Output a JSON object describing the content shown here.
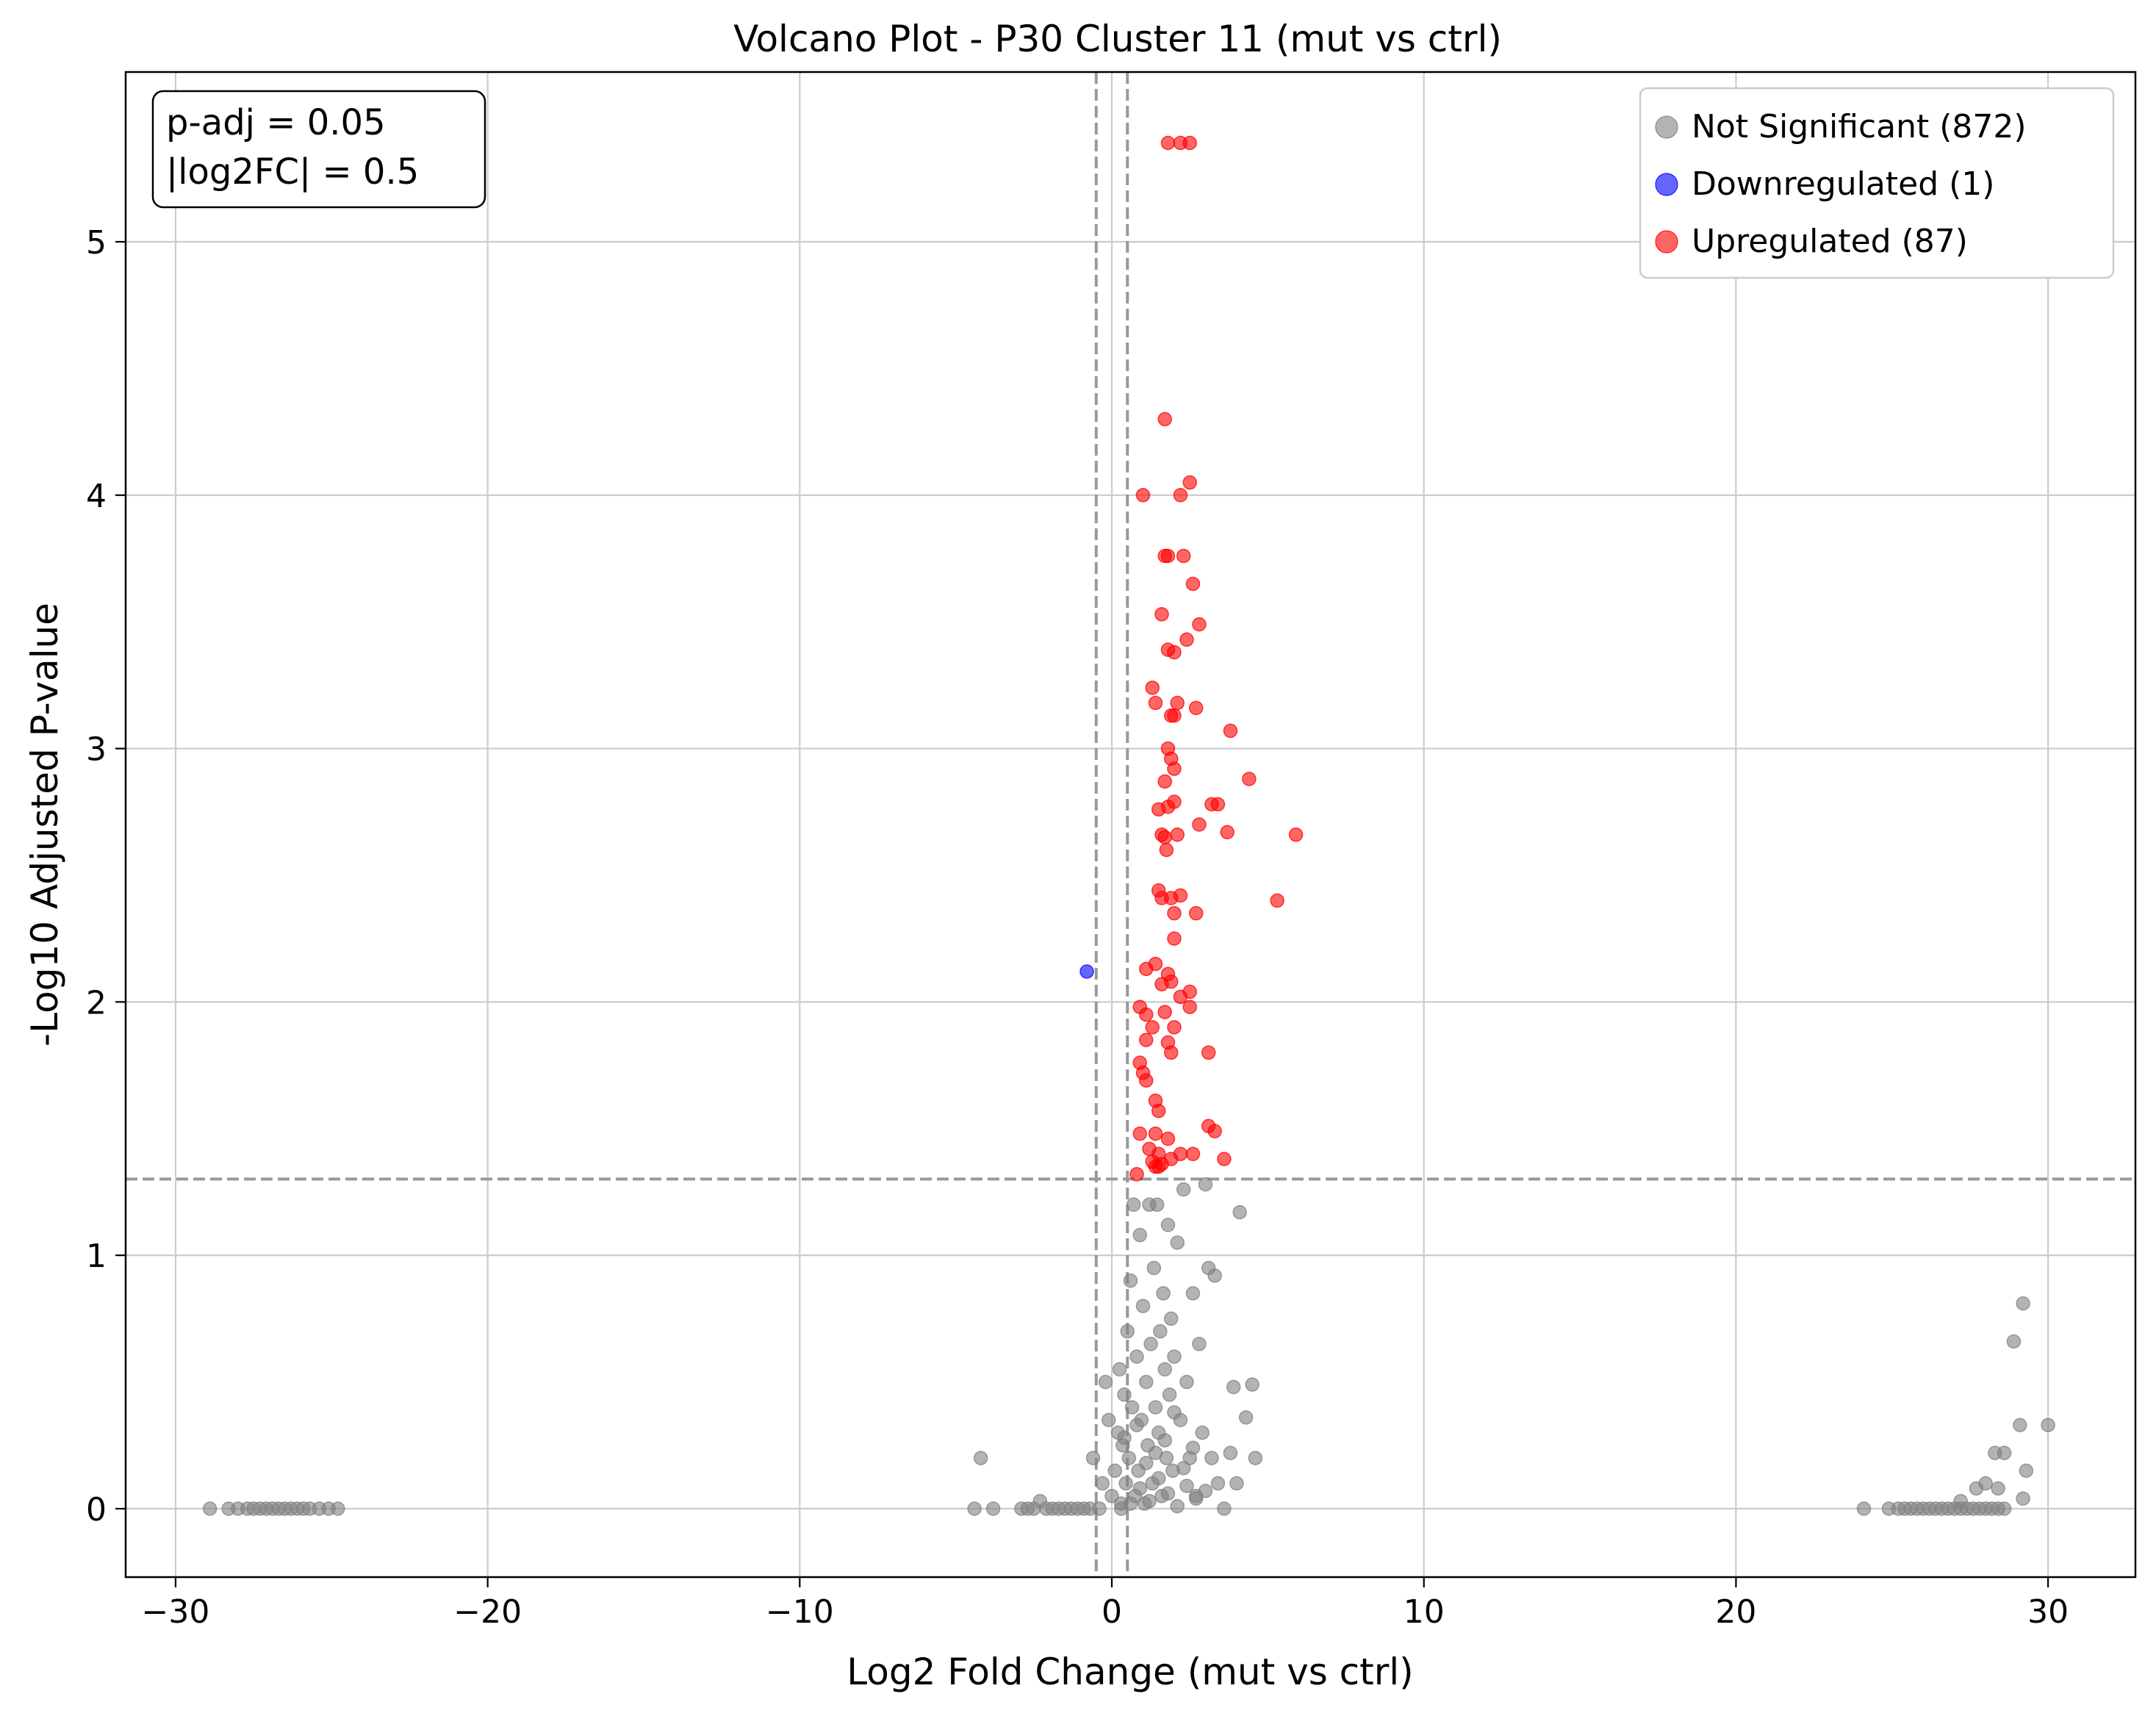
{
  "chart_data": {
    "type": "scatter",
    "title": "Volcano Plot - P30 Cluster 11 (mut vs ctrl)",
    "xlabel": "Log2 Fold Change (mut vs ctrl)",
    "ylabel": "-Log10 Adjusted P-value",
    "xlim": [
      -31.6,
      32.8
    ],
    "ylim": [
      -0.27,
      5.67
    ],
    "xticks": [
      -30,
      -20,
      -10,
      0,
      10,
      20,
      30
    ],
    "yticks": [
      0,
      1,
      2,
      3,
      4,
      5
    ],
    "grid": true,
    "legend_position": "top-right",
    "annotation": [
      "p-adj = 0.05",
      "|log2FC| = 0.5"
    ],
    "thresholds": {
      "padj_line_y": 1.301,
      "log2fc_lines_x": [
        -0.5,
        0.5
      ]
    },
    "series": [
      {
        "name": "Not Significant (872)",
        "color": "#808080",
        "points": [
          [
            -28.9,
            0
          ],
          [
            -28.3,
            0
          ],
          [
            -28.0,
            0
          ],
          [
            -27.7,
            0
          ],
          [
            -27.5,
            0
          ],
          [
            -27.3,
            0
          ],
          [
            -27.1,
            0
          ],
          [
            -26.9,
            0
          ],
          [
            -26.7,
            0
          ],
          [
            -26.5,
            0
          ],
          [
            -26.3,
            0
          ],
          [
            -26.1,
            0
          ],
          [
            -25.9,
            0
          ],
          [
            -25.7,
            0
          ],
          [
            -25.4,
            0
          ],
          [
            -25.1,
            0
          ],
          [
            -24.8,
            0
          ],
          [
            -4.4,
            0
          ],
          [
            -4.2,
            0.2
          ],
          [
            -3.8,
            0
          ],
          [
            -2.9,
            0
          ],
          [
            -2.7,
            0
          ],
          [
            -2.5,
            0
          ],
          [
            -2.3,
            0.03
          ],
          [
            -2.1,
            0
          ],
          [
            -1.9,
            0
          ],
          [
            -1.7,
            0
          ],
          [
            -1.5,
            0
          ],
          [
            -1.3,
            0
          ],
          [
            -1.1,
            0
          ],
          [
            -0.9,
            0
          ],
          [
            -0.7,
            0
          ],
          [
            -0.6,
            0.2
          ],
          [
            -0.4,
            0
          ],
          [
            -0.3,
            0.1
          ],
          [
            -0.2,
            0.5
          ],
          [
            -0.1,
            0.35
          ],
          [
            0.0,
            0.05
          ],
          [
            0.1,
            0.15
          ],
          [
            0.2,
            0.3
          ],
          [
            0.25,
            0.55
          ],
          [
            0.3,
            0.02
          ],
          [
            0.35,
            0.25
          ],
          [
            0.4,
            0.45
          ],
          [
            0.45,
            0.1
          ],
          [
            0.5,
            0.7
          ],
          [
            0.55,
            0.2
          ],
          [
            0.6,
            0.9
          ],
          [
            0.65,
            0.4
          ],
          [
            0.7,
            1.2
          ],
          [
            0.75,
            0.05
          ],
          [
            0.8,
            0.6
          ],
          [
            0.85,
            0.15
          ],
          [
            0.9,
            1.08
          ],
          [
            0.95,
            0.35
          ],
          [
            1.0,
            0.8
          ],
          [
            1.05,
            0.02
          ],
          [
            1.1,
            0.5
          ],
          [
            1.15,
            0.25
          ],
          [
            1.2,
            1.2
          ],
          [
            1.25,
            0.65
          ],
          [
            1.3,
            0.1
          ],
          [
            1.35,
            0.95
          ],
          [
            1.4,
            0.4
          ],
          [
            1.45,
            1.2
          ],
          [
            1.5,
            0.3
          ],
          [
            1.55,
            0.7
          ],
          [
            1.6,
            0.05
          ],
          [
            1.65,
            0.85
          ],
          [
            1.7,
            0.55
          ],
          [
            1.75,
            0.2
          ],
          [
            1.8,
            1.12
          ],
          [
            1.85,
            0.45
          ],
          [
            1.9,
            0.75
          ],
          [
            1.95,
            0.15
          ],
          [
            2.0,
            0.6
          ],
          [
            2.1,
            1.05
          ],
          [
            2.2,
            0.35
          ],
          [
            2.3,
            1.26
          ],
          [
            2.4,
            0.5
          ],
          [
            2.5,
            0.2
          ],
          [
            2.6,
            0.85
          ],
          [
            2.7,
            0.05
          ],
          [
            2.8,
            0.65
          ],
          [
            2.9,
            0.3
          ],
          [
            3.0,
            1.28
          ],
          [
            3.1,
            0.95
          ],
          [
            3.2,
            0.2
          ],
          [
            3.3,
            0.92
          ],
          [
            3.4,
            0.1
          ],
          [
            3.6,
            0
          ],
          [
            3.8,
            0.22
          ],
          [
            3.9,
            0.48
          ],
          [
            4.0,
            0.1
          ],
          [
            4.1,
            1.17
          ],
          [
            4.3,
            0.36
          ],
          [
            4.5,
            0.49
          ],
          [
            4.6,
            0.2
          ],
          [
            0.3,
            0
          ],
          [
            0.6,
            0.02
          ],
          [
            0.9,
            0.08
          ],
          [
            1.2,
            0.03
          ],
          [
            1.5,
            0.12
          ],
          [
            1.8,
            0.06
          ],
          [
            2.1,
            0.01
          ],
          [
            2.4,
            0.09
          ],
          [
            2.7,
            0.04
          ],
          [
            3.0,
            0.07
          ],
          [
            0.4,
            0.28
          ],
          [
            0.8,
            0.33
          ],
          [
            1.1,
            0.18
          ],
          [
            1.4,
            0.22
          ],
          [
            1.7,
            0.27
          ],
          [
            2.0,
            0.38
          ],
          [
            2.3,
            0.16
          ],
          [
            2.6,
            0.24
          ],
          [
            24.1,
            0
          ],
          [
            24.9,
            0
          ],
          [
            25.2,
            0
          ],
          [
            25.4,
            0
          ],
          [
            25.6,
            0
          ],
          [
            25.8,
            0
          ],
          [
            26.0,
            0
          ],
          [
            26.2,
            0
          ],
          [
            26.4,
            0
          ],
          [
            26.6,
            0
          ],
          [
            26.8,
            0
          ],
          [
            27.0,
            0
          ],
          [
            27.2,
            0
          ],
          [
            27.4,
            0
          ],
          [
            27.6,
            0
          ],
          [
            27.8,
            0
          ],
          [
            28.0,
            0
          ],
          [
            28.2,
            0
          ],
          [
            28.4,
            0
          ],
          [
            28.6,
            0
          ],
          [
            27.2,
            0.03
          ],
          [
            27.7,
            0.08
          ],
          [
            28.0,
            0.1
          ],
          [
            28.3,
            0.22
          ],
          [
            28.6,
            0.22
          ],
          [
            28.9,
            0.66
          ],
          [
            29.1,
            0.33
          ],
          [
            29.2,
            0.81
          ],
          [
            29.3,
            0.15
          ],
          [
            29.2,
            0.04
          ],
          [
            28.4,
            0.08
          ],
          [
            30.0,
            0.33
          ]
        ]
      },
      {
        "name": "Downregulated (1)",
        "color": "#0000ff",
        "points": [
          [
            -0.8,
            2.12
          ]
        ]
      },
      {
        "name": "Upregulated (87)",
        "color": "#ff0000",
        "points": [
          [
            1.8,
            5.39
          ],
          [
            2.2,
            5.39
          ],
          [
            2.5,
            5.39
          ],
          [
            1.7,
            4.3
          ],
          [
            2.5,
            4.05
          ],
          [
            1.0,
            4.0
          ],
          [
            2.2,
            4.0
          ],
          [
            1.8,
            3.76
          ],
          [
            1.7,
            3.76
          ],
          [
            2.3,
            3.76
          ],
          [
            2.6,
            3.65
          ],
          [
            1.6,
            3.53
          ],
          [
            2.8,
            3.49
          ],
          [
            2.4,
            3.43
          ],
          [
            1.8,
            3.39
          ],
          [
            2.0,
            3.38
          ],
          [
            1.3,
            3.24
          ],
          [
            1.4,
            3.18
          ],
          [
            2.1,
            3.18
          ],
          [
            1.9,
            3.13
          ],
          [
            2.7,
            3.16
          ],
          [
            2.0,
            3.13
          ],
          [
            3.8,
            3.07
          ],
          [
            1.8,
            3.0
          ],
          [
            1.9,
            2.96
          ],
          [
            2.0,
            2.92
          ],
          [
            4.4,
            2.88
          ],
          [
            1.7,
            2.87
          ],
          [
            2.0,
            2.79
          ],
          [
            1.5,
            2.76
          ],
          [
            1.8,
            2.77
          ],
          [
            3.2,
            2.78
          ],
          [
            3.4,
            2.78
          ],
          [
            1.6,
            2.66
          ],
          [
            1.7,
            2.65
          ],
          [
            2.1,
            2.66
          ],
          [
            2.8,
            2.7
          ],
          [
            3.7,
            2.67
          ],
          [
            5.9,
            2.66
          ],
          [
            1.75,
            2.6
          ],
          [
            1.5,
            2.44
          ],
          [
            1.6,
            2.41
          ],
          [
            1.9,
            2.41
          ],
          [
            2.2,
            2.42
          ],
          [
            2.0,
            2.35
          ],
          [
            2.7,
            2.35
          ],
          [
            5.3,
            2.4
          ],
          [
            2.0,
            2.25
          ],
          [
            1.4,
            2.15
          ],
          [
            1.1,
            2.13
          ],
          [
            1.8,
            2.11
          ],
          [
            1.6,
            2.07
          ],
          [
            2.2,
            2.02
          ],
          [
            2.5,
            2.04
          ],
          [
            1.9,
            2.08
          ],
          [
            0.9,
            1.98
          ],
          [
            1.1,
            1.95
          ],
          [
            1.7,
            1.96
          ],
          [
            2.5,
            1.98
          ],
          [
            1.3,
            1.9
          ],
          [
            2.0,
            1.9
          ],
          [
            1.1,
            1.85
          ],
          [
            1.8,
            1.84
          ],
          [
            1.9,
            1.8
          ],
          [
            3.1,
            1.8
          ],
          [
            0.9,
            1.76
          ],
          [
            1.0,
            1.72
          ],
          [
            1.1,
            1.69
          ],
          [
            1.4,
            1.61
          ],
          [
            1.5,
            1.57
          ],
          [
            3.1,
            1.51
          ],
          [
            3.3,
            1.49
          ],
          [
            0.9,
            1.48
          ],
          [
            1.4,
            1.48
          ],
          [
            1.8,
            1.46
          ],
          [
            1.2,
            1.42
          ],
          [
            1.5,
            1.4
          ],
          [
            2.2,
            1.4
          ],
          [
            2.6,
            1.4
          ],
          [
            3.6,
            1.38
          ],
          [
            1.3,
            1.37
          ],
          [
            1.4,
            1.35
          ],
          [
            1.5,
            1.35
          ],
          [
            1.6,
            1.36
          ],
          [
            0.8,
            1.32
          ],
          [
            1.9,
            1.38
          ]
        ]
      }
    ]
  }
}
